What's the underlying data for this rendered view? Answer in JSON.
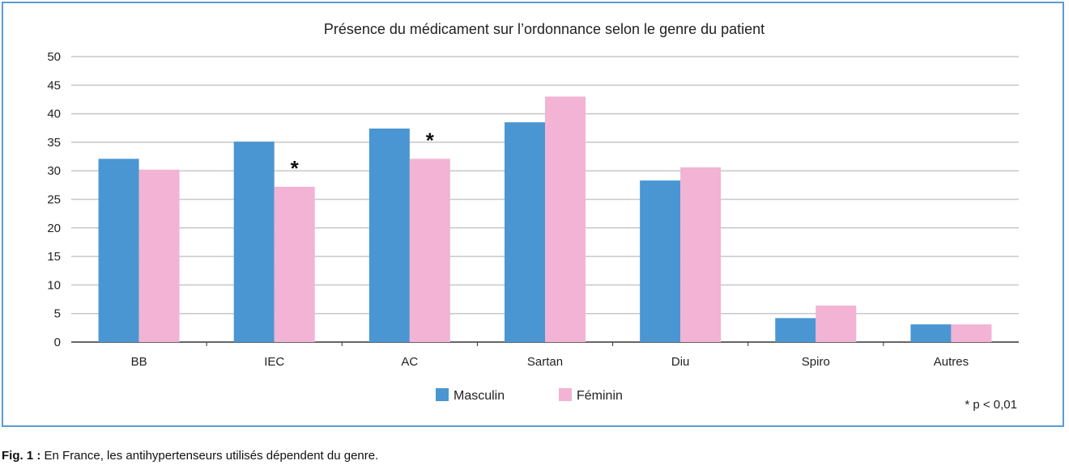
{
  "chart_data": {
    "type": "bar",
    "title": "Présence du médicament sur l’ordonnance selon le genre du patient",
    "xlabel": "",
    "ylabel": "",
    "categories": [
      "BB",
      "IEC",
      "AC",
      "Sartan",
      "Diu",
      "Spiro",
      "Autres"
    ],
    "series": [
      {
        "name": "Masculin",
        "color": "#4a96d2",
        "values": [
          32.1,
          35.1,
          37.4,
          38.5,
          28.3,
          4.2,
          3.1
        ]
      },
      {
        "name": "Féminin",
        "color": "#f2b3d4",
        "values": [
          30.2,
          27.2,
          32.1,
          43.0,
          30.6,
          6.4,
          3.1
        ]
      }
    ],
    "ylim": [
      0,
      50
    ],
    "yticks": [
      0,
      5,
      10,
      15,
      20,
      25,
      30,
      35,
      40,
      45,
      50
    ],
    "grid": true,
    "legend_position": "bottom",
    "significance_markers": [
      {
        "category": "IEC",
        "series": "Féminin",
        "symbol": "*"
      },
      {
        "category": "AC",
        "series": "Féminin",
        "symbol": "*"
      }
    ],
    "footnote": "* p < 0,01"
  },
  "caption": {
    "label": "Fig. 1 :",
    "text": " En France, les antihypertenseurs utilisés dépendent du genre."
  }
}
